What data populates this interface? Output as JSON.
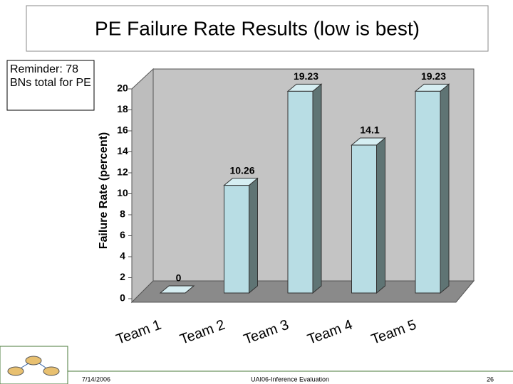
{
  "chart_data": {
    "type": "bar3d",
    "title": "PE Failure Rate Results (low is best)",
    "annotation": "Reminder: 78 BNs total for PE",
    "y_label": "Failure Rate (percent)",
    "categories": [
      "Team 1",
      "Team 2",
      "Team 3",
      "Team 4",
      "Team 5"
    ],
    "values": [
      0,
      10.26,
      19.23,
      14.1,
      19.23
    ],
    "color": "#b8dde4",
    "ylim": [
      0,
      20
    ],
    "yticks": [
      0,
      2,
      4,
      6,
      8,
      10,
      12,
      14,
      16,
      18,
      20
    ],
    "grid": false
  },
  "footer": {
    "date": "7/14/2006",
    "center": "UAI06-Inference Evaluation",
    "page": "26"
  }
}
